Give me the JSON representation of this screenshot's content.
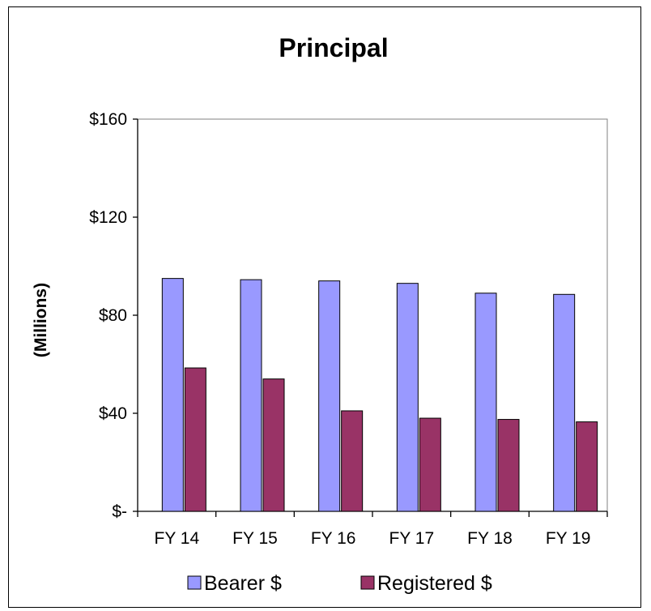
{
  "chart_data": {
    "type": "bar",
    "title": "Principal",
    "ylabel": "(Millions)",
    "xlabel": "",
    "categories": [
      "FY 14",
      "FY 15",
      "FY 16",
      "FY 17",
      "FY 18",
      "FY 19"
    ],
    "series": [
      {
        "name": "Bearer $",
        "values": [
          95,
          94.5,
          94,
          93,
          89,
          88.5
        ],
        "color": "#9999ff"
      },
      {
        "name": "Registered $",
        "values": [
          58.5,
          54,
          41,
          38,
          37.5,
          36.5
        ],
        "color": "#993366"
      }
    ],
    "ylim": [
      0,
      160
    ],
    "yticks": [
      0,
      40,
      80,
      120,
      160
    ],
    "ytick_labels": [
      "$-",
      "$40",
      "$80",
      "$120",
      "$160"
    ],
    "grid": false,
    "legend_position": "bottom"
  }
}
